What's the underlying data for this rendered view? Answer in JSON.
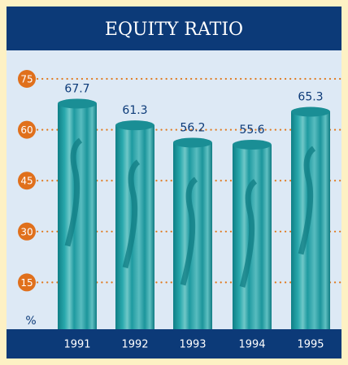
{
  "chart_data": {
    "type": "bar",
    "title": "EQUITY RATIO",
    "categories": [
      "1991",
      "1992",
      "1993",
      "1994",
      "1995"
    ],
    "values": [
      67.7,
      61.3,
      56.2,
      55.6,
      65.3
    ],
    "color": "#1b979c",
    "ylim": [
      0,
      75
    ],
    "yticks": [
      15,
      30,
      45,
      60,
      75
    ],
    "y_label": "%",
    "grid": true,
    "grid_color": "#e07a1f",
    "tick_marker_color": "#e0701c"
  }
}
